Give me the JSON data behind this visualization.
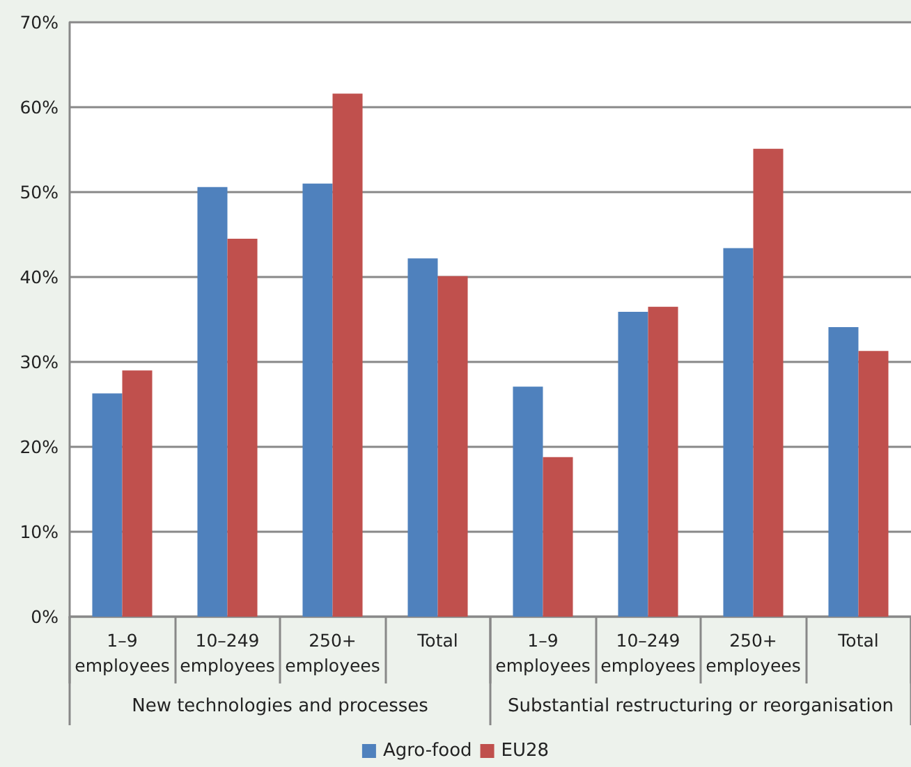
{
  "chart_data": {
    "type": "bar",
    "categories": [
      "1–9\nemployees",
      "10–249\nemployees",
      "250+\nemployees",
      "Total",
      "1–9\nemployees",
      "10–249\nemployees",
      "250+\nemployees",
      "Total"
    ],
    "series": [
      {
        "name": "Agro-food",
        "color": "#4f81bd",
        "values": [
          26.3,
          50.6,
          51.0,
          42.2,
          27.1,
          35.9,
          43.4,
          34.1
        ]
      },
      {
        "name": "EU28",
        "color": "#c0504d",
        "values": [
          29.0,
          44.5,
          61.6,
          40.1,
          18.8,
          36.5,
          55.1,
          31.3
        ]
      }
    ],
    "annotations": [
      "New technologies and processes",
      "Substantial restructuring or reorganisation"
    ],
    "ylim": [
      0,
      70
    ],
    "yticks": [
      {
        "value": 0,
        "label": "0%"
      },
      {
        "value": 10,
        "label": "10%"
      },
      {
        "value": 20,
        "label": "20%"
      },
      {
        "value": 30,
        "label": "30%"
      },
      {
        "value": 40,
        "label": "40%"
      },
      {
        "value": 50,
        "label": "50%"
      },
      {
        "value": 60,
        "label": "60%"
      },
      {
        "value": 70,
        "label": "70%"
      }
    ],
    "grid": "y",
    "legend": "bottom"
  }
}
